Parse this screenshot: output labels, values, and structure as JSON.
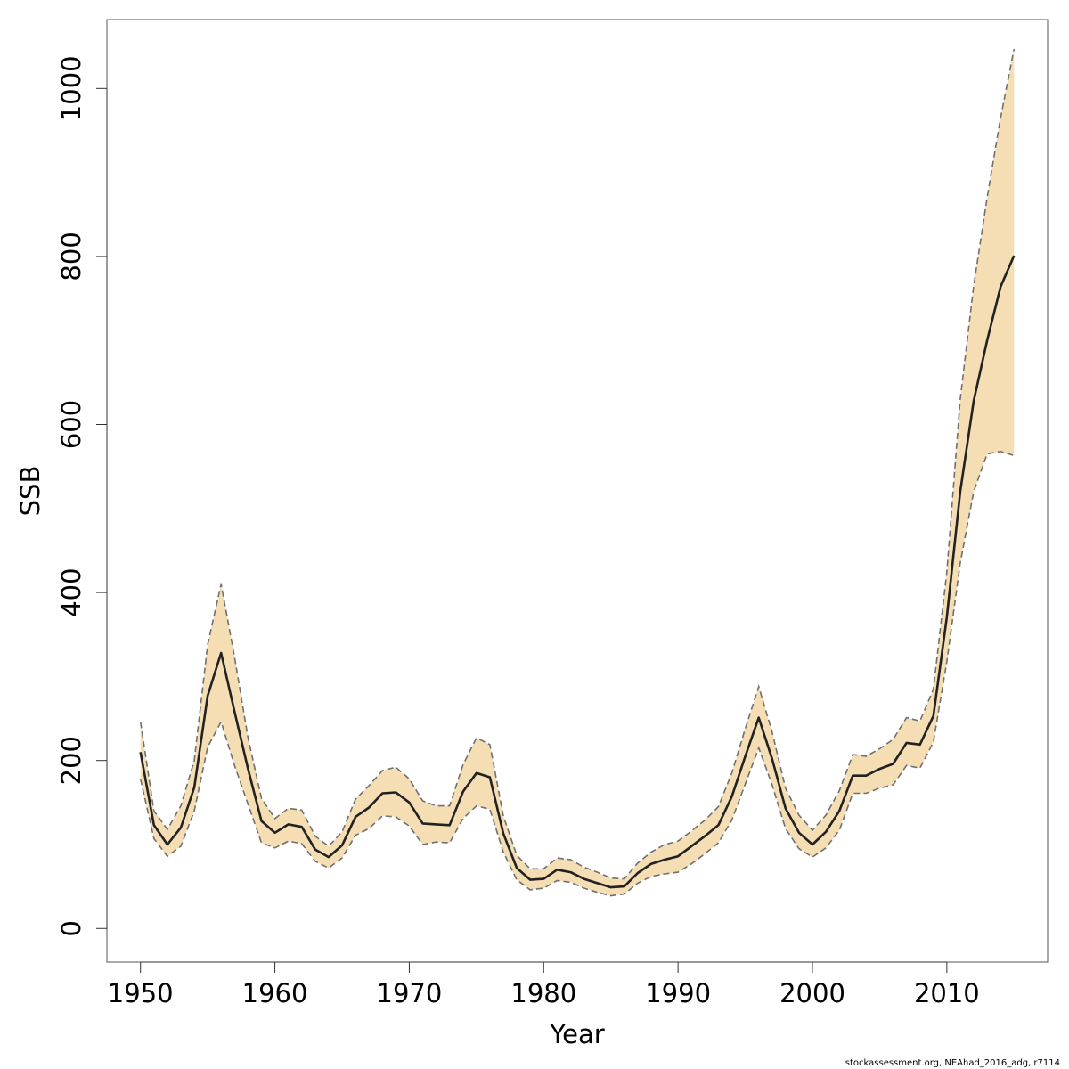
{
  "chart_data": {
    "type": "line",
    "xlabel": "Year",
    "ylabel": "SSB",
    "xlim": [
      1947.5,
      2017.5
    ],
    "ylim": [
      -40,
      1082
    ],
    "xticks": [
      1950,
      1960,
      1970,
      1980,
      1990,
      2000,
      2010
    ],
    "yticks": [
      0,
      200,
      400,
      600,
      800,
      1000
    ],
    "grid": false,
    "band_color": "#f5deb3",
    "line_color": "#222222",
    "bound_color": "#707070",
    "years": [
      1950,
      1951,
      1952,
      1953,
      1954,
      1955,
      1956,
      1957,
      1958,
      1959,
      1960,
      1961,
      1962,
      1963,
      1964,
      1965,
      1966,
      1967,
      1968,
      1969,
      1970,
      1971,
      1972,
      1973,
      1974,
      1975,
      1976,
      1977,
      1978,
      1979,
      1980,
      1981,
      1982,
      1983,
      1984,
      1985,
      1986,
      1987,
      1988,
      1989,
      1990,
      1991,
      1992,
      1993,
      1994,
      1995,
      1996,
      1997,
      1998,
      1999,
      2000,
      2001,
      2002,
      2003,
      2004,
      2005,
      2006,
      2007,
      2008,
      2009,
      2010,
      2011,
      2012,
      2013,
      2014,
      2015
    ],
    "series": [
      {
        "name": "",
        "values": [
          210,
          123,
          100,
          120,
          168,
          277,
          328,
          258,
          190,
          128,
          114,
          124,
          121,
          94,
          85,
          99,
          133,
          144,
          161,
          162,
          150,
          125,
          124,
          123,
          163,
          185,
          180,
          113,
          72,
          58,
          59,
          70,
          67,
          59,
          54,
          49,
          50,
          66,
          77,
          82,
          86,
          98,
          110,
          123,
          157,
          205,
          251,
          202,
          143,
          114,
          100,
          115,
          140,
          182,
          182,
          190,
          196,
          221,
          219,
          253,
          371,
          520,
          628,
          700,
          764,
          801
        ]
      },
      {
        "name": "",
        "values": [
          246,
          140,
          118,
          146,
          200,
          338,
          410,
          323,
          227,
          155,
          131,
          143,
          141,
          110,
          98,
          115,
          154,
          170,
          188,
          192,
          178,
          152,
          146,
          146,
          195,
          227,
          219,
          134,
          87,
          71,
          71,
          84,
          82,
          73,
          67,
          60,
          59,
          78,
          91,
          100,
          104,
          116,
          129,
          145,
          185,
          238,
          288,
          234,
          167,
          135,
          117,
          135,
          164,
          207,
          205,
          214,
          225,
          251,
          247,
          285,
          425,
          630,
          765,
          870,
          965,
          1047
        ]
      },
      {
        "name": "",
        "values": [
          178,
          107,
          86,
          98,
          140,
          216,
          246,
          194,
          148,
          102,
          96,
          104,
          101,
          80,
          72,
          84,
          111,
          119,
          134,
          133,
          122,
          100,
          103,
          102,
          131,
          146,
          142,
          91,
          58,
          46,
          48,
          57,
          55,
          48,
          43,
          39,
          41,
          54,
          62,
          65,
          67,
          77,
          89,
          102,
          129,
          172,
          215,
          171,
          119,
          95,
          85,
          96,
          117,
          161,
          161,
          167,
          171,
          194,
          191,
          222,
          318,
          435,
          520,
          565,
          568,
          563
        ]
      }
    ]
  },
  "footer": {
    "credit": "stockassessment.org, NEAhad_2016_adg, r7114"
  }
}
